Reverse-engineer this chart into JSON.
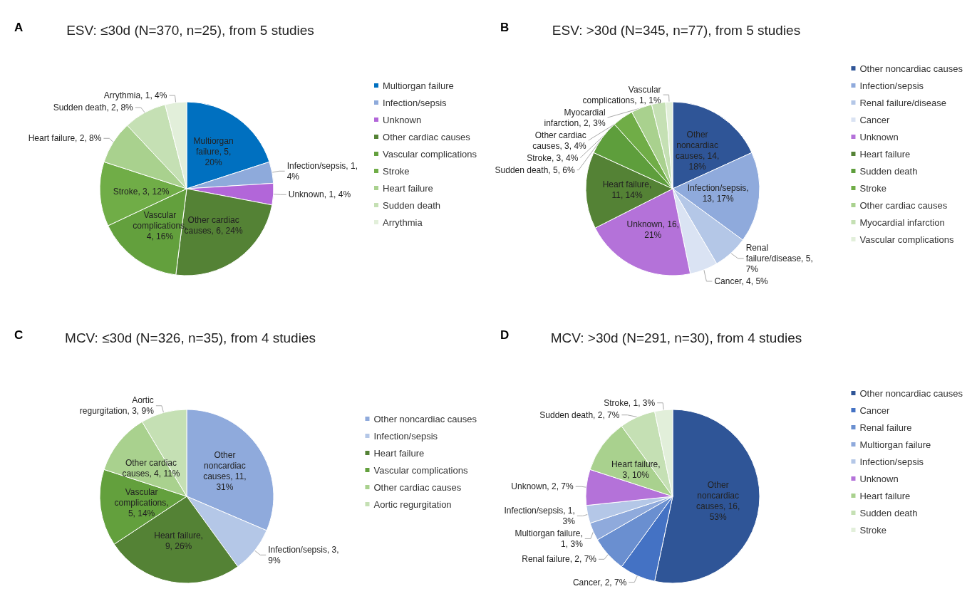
{
  "chart_data": [
    {
      "type": "pie",
      "title": "ESV: ≤30d (N=370, n=25), from 5 studies",
      "annotations": [
        "A"
      ],
      "legend": "right",
      "categories": [
        "Multiorgan failure",
        "Infection/sepsis",
        "Unknown",
        "Other cardiac causes",
        "Vascular complications",
        "Stroke",
        "Heart failure",
        "Sudden death",
        "Arrythmia"
      ],
      "values": [
        5,
        1,
        1,
        6,
        4,
        3,
        2,
        2,
        1
      ],
      "value_labels": [
        "Multiorgan failure, 5, 20%",
        "Infection/sepsis, 1, 4%",
        "Unknown, 1, 4%",
        "Other cardiac causes, 6, 24%",
        "Vascular complications, 4, 16%",
        "Stroke, 3, 12%",
        "Heart failure, 2, 8%",
        "Sudden death, 2, 8%",
        "Arrythmia, 1, 4%"
      ],
      "colors": [
        "#0070c0",
        "#8eaadb",
        "#b266d9",
        "#548235",
        "#63a03d",
        "#70ad47",
        "#a9d18e",
        "#c5e0b4",
        "#e2efda"
      ]
    },
    {
      "type": "pie",
      "title": "ESV: >30d (N=345, n=77), from 5 studies",
      "annotations": [
        "B"
      ],
      "legend": "right",
      "categories": [
        "Other noncardiac causes",
        "Infection/sepsis",
        "Renal failure/disease",
        "Cancer",
        "Unknown",
        "Heart failure",
        "Sudden death",
        "Stroke",
        "Other cardiac causes",
        "Myocardial infarction",
        "Vascular complications"
      ],
      "values": [
        14,
        13,
        5,
        4,
        16,
        11,
        5,
        3,
        3,
        2,
        1
      ],
      "value_labels": [
        "Other noncardiac causes, 14, 18%",
        "Infection/sepsis, 13, 17%",
        "Renal failure/disease, 5, 7%",
        "Cancer, 4, 5%",
        "Unknown, 16, 21%",
        "Heart failure, 11, 14%",
        "Sudden death, 5, 6%",
        "Stroke, 3, 4%",
        "Other cardiac causes, 3, 4%",
        "Myocardial infarction, 2, 3%",
        "Vascular complications, 1, 1%"
      ],
      "colors": [
        "#2f5597",
        "#8faadc",
        "#b4c7e7",
        "#dae3f3",
        "#b472d9",
        "#548235",
        "#5e9e3c",
        "#70ad47",
        "#a9d18e",
        "#c5e0b4",
        "#e2efda"
      ]
    },
    {
      "type": "pie",
      "title": "MCV: ≤30d (N=326, n=35), from 4 studies",
      "annotations": [
        "C"
      ],
      "legend": "right",
      "categories": [
        "Other noncardiac causes",
        "Infection/sepsis",
        "Heart failure",
        "Vascular complications",
        "Other cardiac causes",
        "Aortic regurgitation"
      ],
      "values": [
        11,
        3,
        9,
        5,
        4,
        3
      ],
      "value_labels": [
        "Other noncardiac causes, 11, 31%",
        "Infection/sepsis, 3, 9%",
        "Heart failure, 9, 26%",
        "Vascular complications, 5, 14%",
        "Other cardiac causes, 4, 11%",
        "Aortic regurgitation, 3, 9%"
      ],
      "colors": [
        "#8faadc",
        "#b4c7e7",
        "#548235",
        "#63a03d",
        "#a9d18e",
        "#c5e0b4"
      ]
    },
    {
      "type": "pie",
      "title": "MCV: >30d (N=291, n=30), from 4 studies",
      "annotations": [
        "D"
      ],
      "legend": "right",
      "categories": [
        "Other noncardiac causes",
        "Cancer",
        "Renal failure",
        "Multiorgan failure",
        "Infection/sepsis",
        "Unknown",
        "Heart failure",
        "Sudden death",
        "Stroke"
      ],
      "values": [
        16,
        2,
        2,
        1,
        1,
        2,
        3,
        2,
        1
      ],
      "value_labels": [
        "Other noncardiac causes, 16, 53%",
        "Cancer, 2, 7%",
        "Renal failure, 2, 7%",
        "Multiorgan failure, 1, 3%",
        "Infection/sepsis, 1, 3%",
        "Unknown, 2, 7%",
        "Heart failure, 3, 10%",
        "Sudden death, 2, 7%",
        "Stroke, 1, 3%"
      ],
      "colors": [
        "#2f5597",
        "#4472c4",
        "#6a8fd0",
        "#8faadc",
        "#b4c7e7",
        "#b472d9",
        "#a9d18e",
        "#c5e0b4",
        "#e2efda"
      ]
    }
  ]
}
